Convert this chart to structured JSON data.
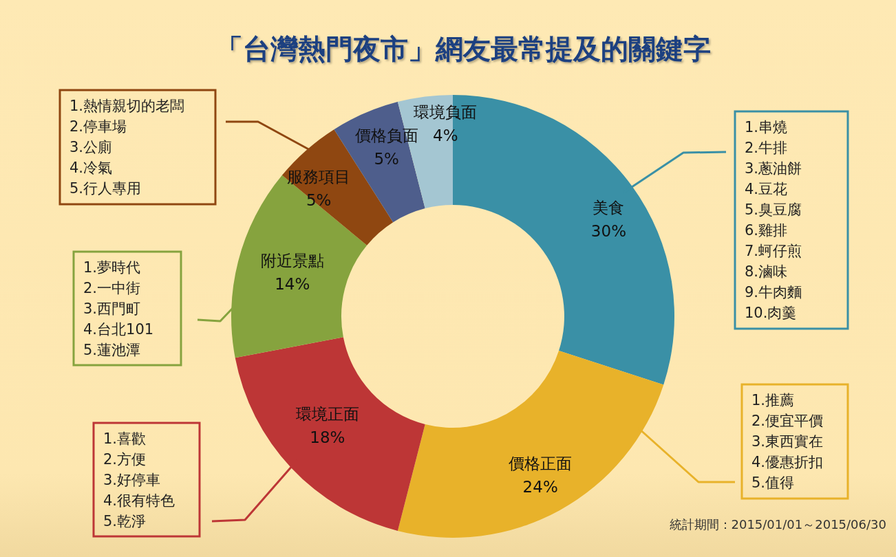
{
  "chart_data": {
    "type": "donut",
    "title": "「台灣熱門夜市」網友最常提及的關鍵字",
    "categories": [
      "美食",
      "價格正面",
      "環境正面",
      "附近景點",
      "服務項目",
      "價格負面",
      "環境負面"
    ],
    "values": [
      30,
      24,
      18,
      14,
      5,
      5,
      4
    ],
    "colors": [
      "#3a90a6",
      "#e8b22a",
      "#bd3636",
      "#86a33e",
      "#8f4711",
      "#4e5e8c",
      "#a4c6d2"
    ],
    "value_labels": [
      "30%",
      "24%",
      "18%",
      "14%",
      "5%",
      "5%",
      "4%"
    ],
    "annotations": [
      "1.串燒\n2.牛排\n3.蔥油餅\n4.豆花\n5.臭豆腐\n6.雞排\n7.蚵仔煎\n8.滷味\n9.牛肉麵\n10.肉羹",
      "1.推薦\n2.便宜平價\n3.東西實在\n4.優惠折扣\n5.值得",
      "1.喜歡\n2.方便\n3.好停車\n4.很有特色\n5.乾淨",
      "1.夢時代\n2.一中街\n3.西門町\n4.台北101\n5.蓮池潭",
      "1.熱情親切的老闆\n2.停車場\n3.公廁\n4.冷氣\n5.行人專用",
      "統計期間：2015/01/01～2015/06/30"
    ]
  }
}
